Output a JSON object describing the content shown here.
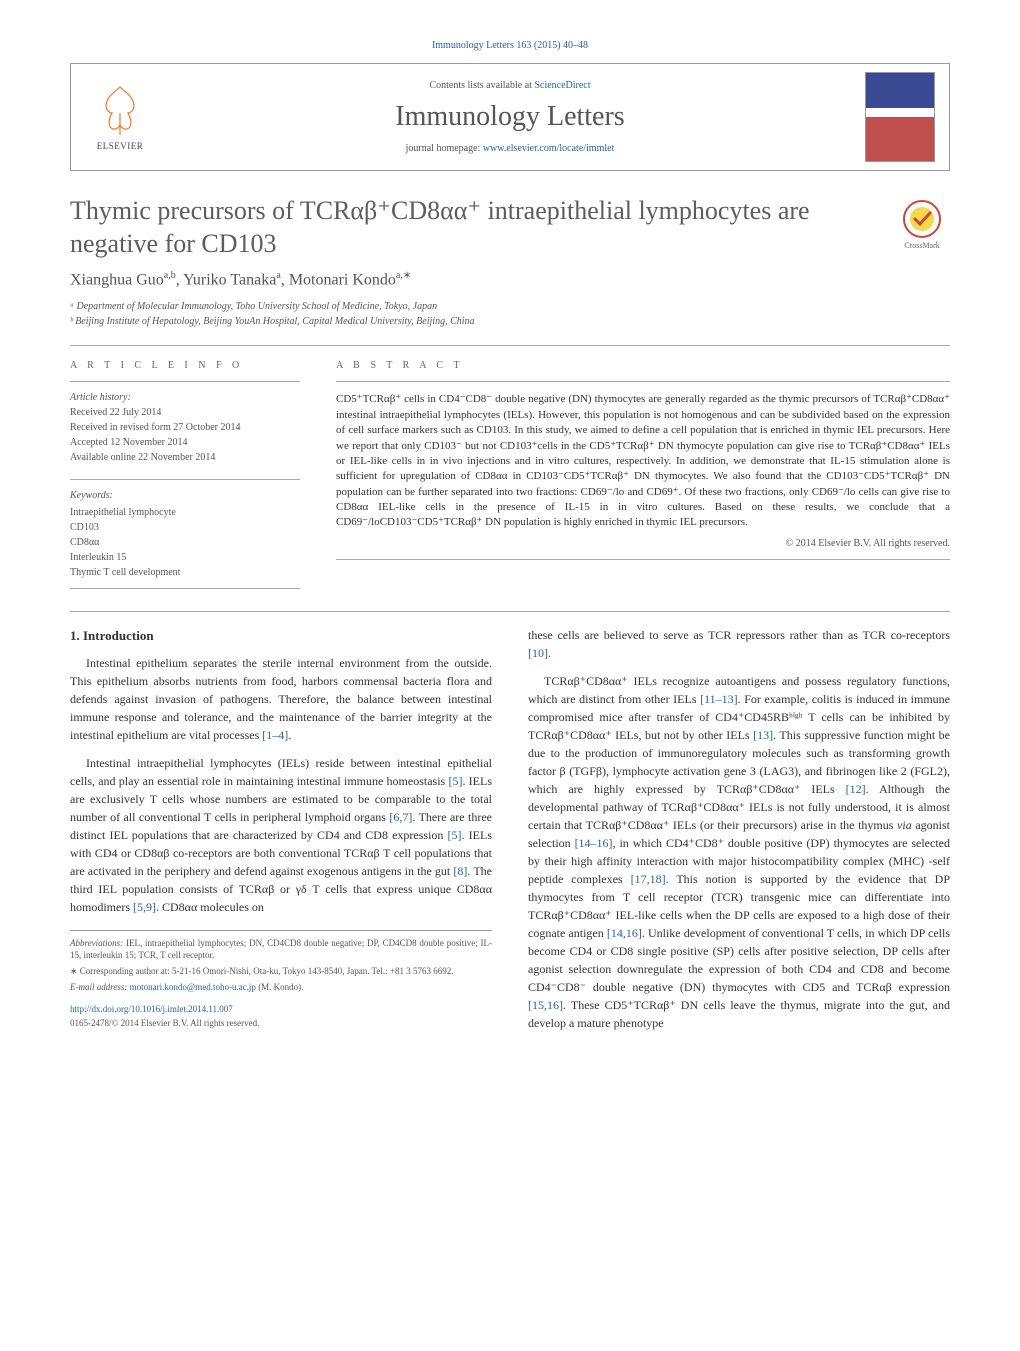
{
  "journal_ref": "Immunology Letters 163 (2015) 40–48",
  "header": {
    "contents_prefix": "Contents lists available at ",
    "contents_link": "ScienceDirect",
    "journal_name": "Immunology Letters",
    "homepage_prefix": "journal homepage: ",
    "homepage_link": "www.elsevier.com/locate/immlet",
    "publisher": "ELSEVIER"
  },
  "crossmark_label": "CrossMark",
  "title": "Thymic precursors of TCRαβ⁺CD8αα⁺ intraepithelial lymphocytes are negative for CD103",
  "authors_html": "Xianghua Guo<sup>a,b</sup>, Yuriko Tanaka<sup>a</sup>, Motonari Kondo<sup>a,∗</sup>",
  "affiliations": [
    "ᵃ Department of Molecular Immunology, Toho University School of Medicine, Tokyo, Japan",
    "ᵇ Beijing Institute of Hepatology, Beijing YouAn Hospital, Capital Medical University, Beijing, China"
  ],
  "info_heading": "a r t i c l e   i n f o",
  "history": {
    "label": "Article history:",
    "lines": [
      "Received 22 July 2014",
      "Received in revised form 27 October 2014",
      "Accepted 12 November 2014",
      "Available online 22 November 2014"
    ]
  },
  "keywords": {
    "label": "Keywords:",
    "items": [
      "Intraepithelial lymphocyte",
      "CD103",
      "CD8αα",
      "Interleukin 15",
      "Thymic T cell development"
    ]
  },
  "abstract_heading": "a b s t r a c t",
  "abstract": "CD5⁺TCRαβ⁺ cells in CD4⁻CD8⁻ double negative (DN) thymocytes are generally regarded as the thymic precursors of TCRαβ⁺CD8αα⁺ intestinal intraepithelial lymphocytes (IELs). However, this population is not homogenous and can be subdivided based on the expression of cell surface markers such as CD103. In this study, we aimed to define a cell population that is enriched in thymic IEL precursors. Here we report that only CD103⁻ but not CD103⁺cells in the CD5⁺TCRαβ⁺ DN thymocyte population can give rise to TCRαβ⁺CD8αα⁺ IELs or IEL-like cells in in vivo injections and in vitro cultures, respectively. In addition, we demonstrate that IL-15 stimulation alone is sufficient for upregulation of CD8αα in CD103⁻CD5⁺TCRαβ⁺ DN thymocytes. We also found that the CD103⁻CD5⁺TCRαβ⁺ DN population can be further separated into two fractions: CD69⁻/lo and CD69⁺. Of these two fractions, only CD69⁻/lo cells can give rise to CD8αα IEL-like cells in the presence of IL-15 in in vitro cultures. Based on these results, we conclude that a CD69⁻/loCD103⁻CD5⁺TCRαβ⁺ DN population is highly enriched in thymic IEL precursors.",
  "copyright_short": "© 2014 Elsevier B.V. All rights reserved.",
  "section1_heading": "1.  Introduction",
  "col1": [
    "Intestinal epithelium separates the sterile internal environment from the outside. This epithelium absorbs nutrients from food, harbors commensal bacteria flora and defends against invasion of pathogens. Therefore, the balance between intestinal immune response and tolerance, and the maintenance of the barrier integrity at the intestinal epithelium are vital processes [1–4].",
    "Intestinal intraepithelial lymphocytes (IELs) reside between intestinal epithelial cells, and play an essential role in maintaining intestinal immune homeostasis [5]. IELs are exclusively T cells whose numbers are estimated to be comparable to the total number of all conventional T cells in peripheral lymphoid organs [6,7]. There are three distinct IEL populations that are characterized by CD4 and CD8 expression [5]. IELs with CD4 or CD8αβ co-receptors are both conventional TCRαβ T cell populations that are activated in the periphery and defend against exogenous antigens in the gut [8]. The third IEL population consists of TCRαβ or γδ T cells that express unique CD8αα homodimers [5,9]. CD8αα molecules on"
  ],
  "col2": [
    "these cells are believed to serve as TCR repressors rather than as TCR co-receptors [10].",
    "TCRαβ⁺CD8αα⁺ IELs recognize autoantigens and possess regulatory functions, which are distinct from other IELs [11–13]. For example, colitis is induced in immune compromised mice after transfer of CD4⁺CD45RBʰⁱᵍʰ T cells can be inhibited by TCRαβ⁺CD8αα⁺ IELs, but not by other IELs [13]. This suppressive function might be due to the production of immunoregulatory molecules such as transforming growth factor β (TGFβ), lymphocyte activation gene 3 (LAG3), and fibrinogen like 2 (FGL2), which are highly expressed by TCRαβ⁺CD8αα⁺ IELs [12]. Although the developmental pathway of TCRαβ⁺CD8αα⁺ IELs is not fully understood, it is almost certain that TCRαβ⁺CD8αα⁺ IELs (or their precursors) arise in the thymus via agonist selection [14–16], in which CD4⁺CD8⁺ double positive (DP) thymocytes are selected by their high affinity interaction with major histocompatibility complex (MHC) -self peptide complexes [17,18]. This notion is supported by the evidence that DP thymocytes from T cell receptor (TCR) transgenic mice can differentiate into TCRαβ⁺CD8αα⁺ IEL-like cells when the DP cells are exposed to a high dose of their cognate antigen [14,16]. Unlike development of conventional T cells, in which DP cells become CD4 or CD8 single positive (SP) cells after positive selection, DP cells after agonist selection downregulate the expression of both CD4 and CD8 and become CD4⁻CD8⁻ double negative (DN) thymocytes with CD5 and TCRαβ expression [15,16]. These CD5⁺TCRαβ⁺ DN cells leave the thymus, migrate into the gut, and develop a mature phenotype"
  ],
  "footnotes": {
    "abbrev_label": "Abbreviations:",
    "abbrev": " IEL, intraepithelial lymphocytes; DN, CD4CD8 double negative; DP, CD4CD8 double positive; IL-15, interleukin 15; TCR, T cell receptor.",
    "corr_label": "∗ Corresponding author at: ",
    "corr": "5-21-16 Omori-Nishi, Ota-ku, Tokyo 143-8540, Japan. Tel.: +81 3 5763 6692.",
    "email_label": "E-mail address: ",
    "email": "motonari.kondo@med.toho-u.ac.jp",
    "email_who": " (M. Kondo)."
  },
  "doi": "http://dx.doi.org/10.1016/j.imlet.2014.11.007",
  "copyright_bottom": "0165-2478/© 2014 Elsevier B.V. All rights reserved.",
  "colors": {
    "link": "#2763a3",
    "elsevier_orange": "#f47920",
    "text_gray": "#5d5d5d",
    "crossmark_outer": "#c9463d",
    "crossmark_inner": "#f5d94a"
  },
  "refs": {
    "r1_4": "[1–4]",
    "r5": "[5]",
    "r6_7": "[6,7]",
    "r8": "[8]",
    "r5_9": "[5,9]",
    "r10": "[10]",
    "r11_13": "[11–13]",
    "r13": "[13]",
    "r12": "[12]",
    "r14_16": "[14–16]",
    "r17_18": "[17,18]",
    "r14_16b": "[14,16]",
    "r15_16": "[15,16]"
  }
}
